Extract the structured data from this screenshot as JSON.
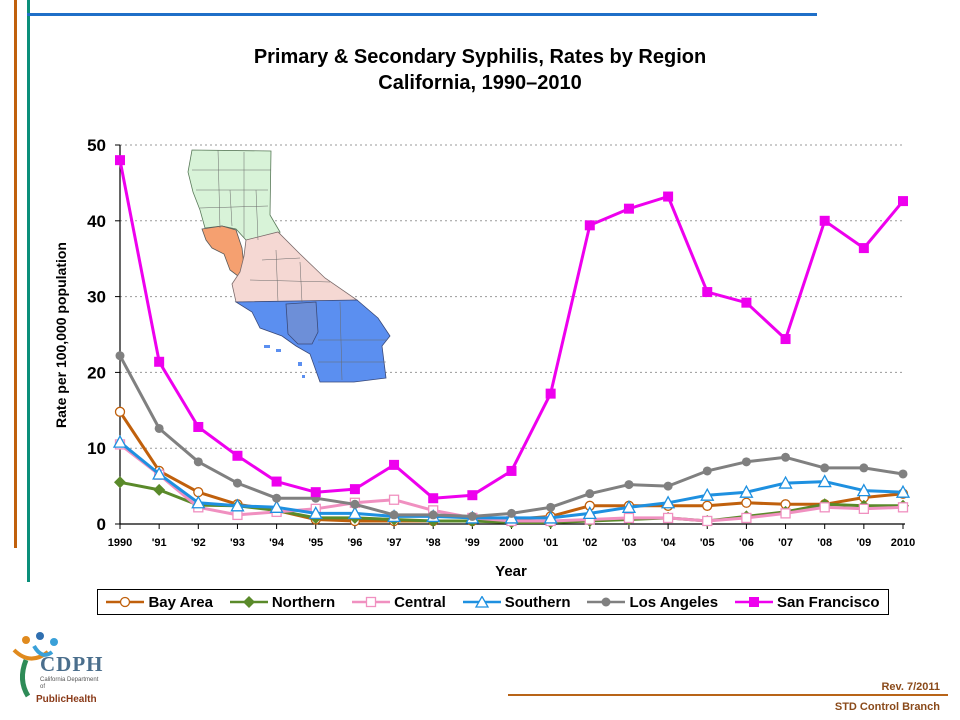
{
  "title_line1": "Primary & Secondary Syphilis, Rates by Region",
  "title_line2": "California, 1990–2010",
  "footer": {
    "rev": "Rev. 7/2011",
    "branch": "STD Control Branch"
  },
  "logo": {
    "name": "CDPH",
    "line": "California Department of",
    "dept": "PublicHealth"
  },
  "chart_data": {
    "type": "line",
    "title": "Primary & Secondary Syphilis, Rates by Region California, 1990–2010",
    "xlabel": "Year",
    "ylabel": "Rate per 100,000 population",
    "ylim": [
      0,
      50
    ],
    "yticks": [
      0,
      10,
      20,
      30,
      40,
      50
    ],
    "grid": "horizontal dotted",
    "legend_position": "bottom",
    "categories": [
      "1990",
      "'91",
      "'92",
      "'93",
      "'94",
      "'95",
      "'96",
      "'97",
      "'98",
      "'99",
      "2000",
      "'01",
      "'02",
      "'03",
      "'04",
      "'05",
      "'06",
      "'07",
      "'08",
      "'09",
      "2010"
    ],
    "series": [
      {
        "name": "Bay Area",
        "color": "#c0600c",
        "marker": "open-circle",
        "values": [
          14.8,
          7.0,
          4.2,
          2.6,
          1.8,
          0.6,
          0.4,
          0.4,
          0.4,
          0.4,
          0.6,
          1.0,
          2.4,
          2.4,
          2.4,
          2.4,
          2.8,
          2.6,
          2.6,
          3.5,
          4.0
        ]
      },
      {
        "name": "Northern",
        "color": "#5a8a2a",
        "marker": "diamond",
        "values": [
          5.5,
          4.5,
          2.5,
          2.4,
          1.8,
          0.8,
          0.8,
          0.6,
          0.4,
          0.4,
          0.2,
          0.2,
          0.4,
          0.6,
          0.8,
          0.4,
          1.0,
          1.6,
          2.6,
          2.4,
          2.4
        ]
      },
      {
        "name": "Central",
        "color": "#f090c0",
        "marker": "open-square",
        "values": [
          10.5,
          6.5,
          2.2,
          1.2,
          1.6,
          2.0,
          2.8,
          3.2,
          1.8,
          0.8,
          0.4,
          0.4,
          0.6,
          0.8,
          0.8,
          0.4,
          0.8,
          1.4,
          2.2,
          2.0,
          2.2
        ]
      },
      {
        "name": "Southern",
        "color": "#1e90e0",
        "marker": "open-triangle",
        "values": [
          10.8,
          6.6,
          2.8,
          2.4,
          2.2,
          1.4,
          1.4,
          1.0,
          1.0,
          0.8,
          0.8,
          0.8,
          1.4,
          2.2,
          2.8,
          3.8,
          4.2,
          5.4,
          5.6,
          4.4,
          4.2
        ]
      },
      {
        "name": "Los Angeles",
        "color": "#808080",
        "marker": "circle",
        "values": [
          22.2,
          12.6,
          8.2,
          5.4,
          3.4,
          3.4,
          2.6,
          1.2,
          1.2,
          1.0,
          1.4,
          2.2,
          4.0,
          5.2,
          5.0,
          7.0,
          8.2,
          8.8,
          7.4,
          7.4,
          6.6
        ]
      },
      {
        "name": "San Francisco",
        "color": "#ee00ee",
        "marker": "square",
        "values": [
          48.0,
          21.4,
          12.8,
          9.0,
          5.6,
          4.2,
          4.6,
          7.8,
          3.4,
          3.8,
          7.0,
          17.2,
          39.4,
          41.6,
          43.2,
          30.6,
          29.2,
          24.4,
          40.0,
          36.4,
          42.6
        ]
      }
    ]
  }
}
